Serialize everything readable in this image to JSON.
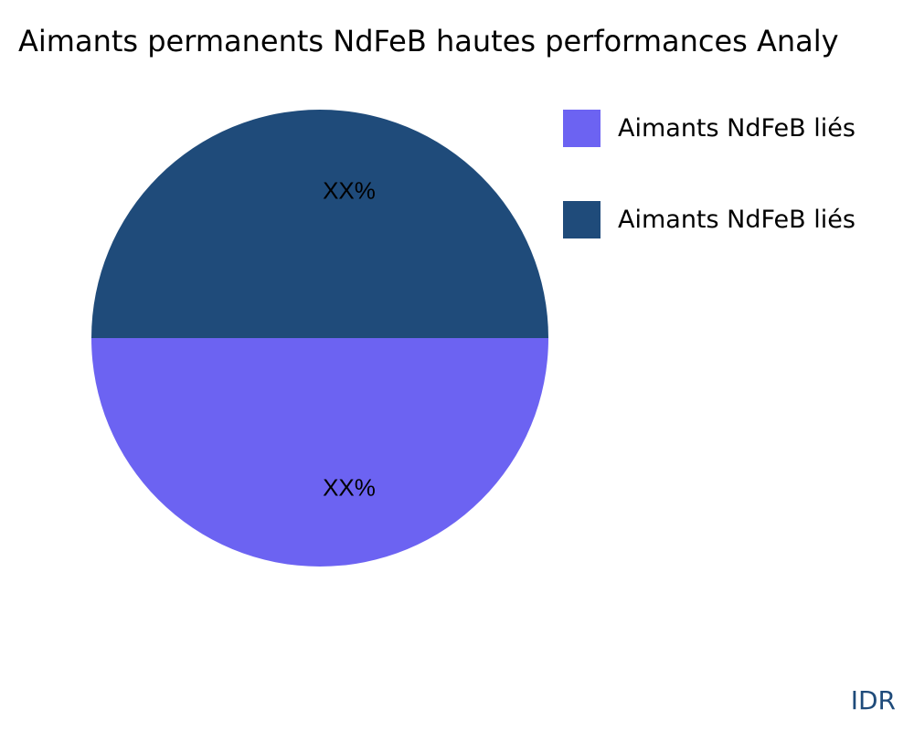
{
  "chart_data": {
    "type": "pie",
    "title": "Aimants permanents NdFeB hautes performances Analy",
    "slices": [
      {
        "label": "Aimants NdFeB liés",
        "value": 50,
        "display_label": "XX%",
        "color": "#6c63f2"
      },
      {
        "label": "Aimants NdFeB liés",
        "value": 50,
        "display_label": "XX%",
        "color": "#1f4b7a"
      }
    ],
    "legend_placement": "right"
  },
  "watermark": "IDR"
}
